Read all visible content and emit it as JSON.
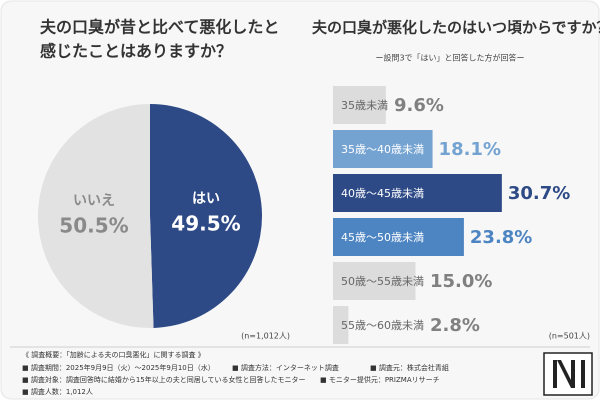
{
  "chart_data": [
    {
      "type": "pie",
      "title": [
        "夫の口臭が昔と比べて悪化したと",
        "感じたことはありますか？"
      ],
      "categories": [
        "はい",
        "いいえ"
      ],
      "values": [
        49.5,
        50.5
      ],
      "value_labels": [
        "49.5%",
        "50.5%"
      ],
      "colors": [
        "#2d4a86",
        "#e2e2e2"
      ],
      "note": "(n=1,012人)"
    },
    {
      "type": "bar",
      "title": "夫の口臭が悪化したのはいつ頃からですか？",
      "subtitle": "ー設問3で「はい」と回答した方が回答ー",
      "categories": [
        "35歳未満",
        "35歳〜40歳未満",
        "40歳〜45歳未満",
        "45歳〜50歳未満",
        "50歳〜55歳未満",
        "55歳〜60歳未満"
      ],
      "values": [
        9.6,
        18.1,
        30.7,
        23.8,
        15.0,
        2.8
      ],
      "value_labels": [
        "9.6%",
        "18.1%",
        "30.7%",
        "23.8%",
        "15.0%",
        "2.8%"
      ],
      "colors": [
        "#dcdcdc",
        "#74a3d2",
        "#2d4a86",
        "#4d84c2",
        "#dcdcdc",
        "#dcdcdc"
      ],
      "note": "(n=501人)"
    }
  ],
  "footer": {
    "heading": "《 調査概要：「加齢による夫の口臭悪化」に関する調査 》",
    "items": [
      "■ 調査期間：2025年9月9日（火）〜2025年9月10日（水）",
      "■ 調査方法：インターネット調査",
      "■ 調査元：株式会社青組",
      "■ 調査対象：調査回答時に結婚から15年以上の夫と同居している女性と回答したモニター",
      "■ モニター提供元：PRIZMAリサーチ",
      "■ 調査人数：1,012人"
    ]
  }
}
